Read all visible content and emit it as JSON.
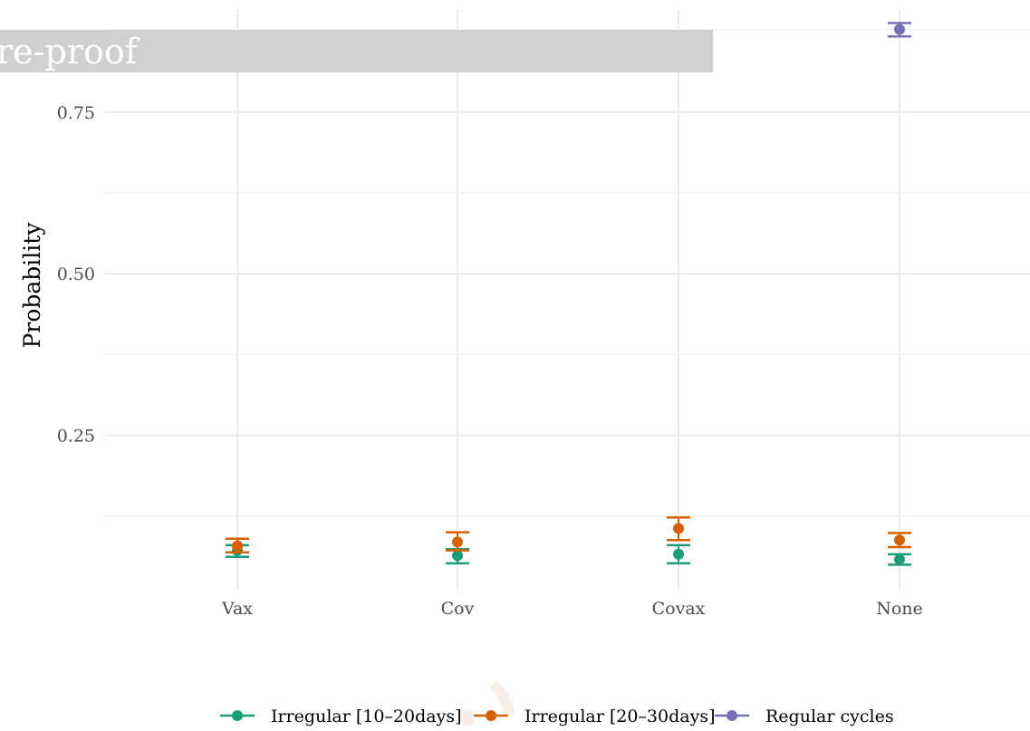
{
  "banner": {
    "text": "re-proof",
    "color": "#d0d0d2"
  },
  "chart_data": {
    "type": "scatter",
    "title": "",
    "xlabel": "",
    "ylabel": "Probability",
    "categories": [
      "Vax",
      "Cov",
      "Covax",
      "None"
    ],
    "ylim": [
      0.0,
      0.9
    ],
    "yticks": [
      0.25,
      0.5,
      0.75
    ],
    "ytick_labels": [
      "0.25",
      "0.50",
      "0.75"
    ],
    "grid": true,
    "legend_position": "bottom",
    "series": [
      {
        "name": "Irregular [10–20days]",
        "color": "#1b9e77",
        "values": [
          0.072,
          0.064,
          0.066,
          0.058
        ],
        "lower": [
          0.062,
          0.052,
          0.052,
          0.05
        ],
        "upper": [
          0.08,
          0.074,
          0.08,
          0.066
        ]
      },
      {
        "name": "Irregular [20–30days]",
        "color": "#d95f02",
        "values": [
          0.079,
          0.085,
          0.106,
          0.088
        ],
        "lower": [
          0.069,
          0.072,
          0.088,
          0.077
        ],
        "upper": [
          0.09,
          0.1,
          0.123,
          0.099
        ]
      },
      {
        "name": "Regular cycles",
        "color": "#7570b3",
        "values": [
          null,
          null,
          null,
          0.878
        ],
        "lower": [
          null,
          null,
          0.834,
          0.867
        ],
        "upper": [
          null,
          null,
          null,
          0.888
        ]
      }
    ]
  }
}
